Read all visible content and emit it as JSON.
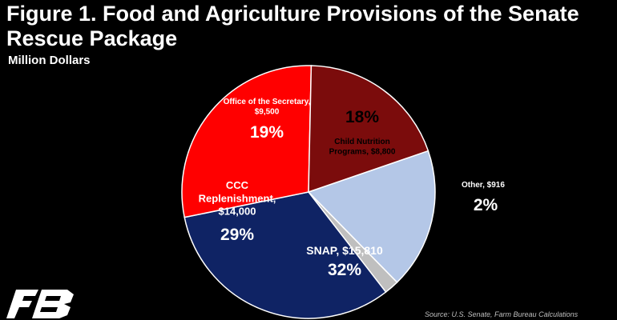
{
  "header": {
    "title": "Figure 1. Food and Agriculture Provisions of the Senate Rescue Package",
    "subtitle": "Million Dollars"
  },
  "footer": {
    "source": "Source: U.S. Senate, Farm Bureau Calculations",
    "logo_icon": "farm-bureau-logo-icon"
  },
  "chart_data": {
    "type": "pie",
    "title": "Figure 1. Food and Agriculture Provisions of the Senate Rescue Package",
    "subtitle": "Million Dollars",
    "unit": "Million Dollars",
    "slices": [
      {
        "label_lines": [
          "Child Nutrition",
          "Programs, $8,800"
        ],
        "name": "Child Nutrition Programs",
        "value": 8800,
        "percent_label": "18%",
        "color": "#b4c7e7"
      },
      {
        "label_lines": [
          "Other, $916"
        ],
        "name": "Other",
        "value": 916,
        "percent_label": "2%",
        "color": "#bfbfbf"
      },
      {
        "label_lines": [
          "SNAP, $15,810"
        ],
        "name": "SNAP",
        "value": 15810,
        "percent_label": "32%",
        "color": "#0f2364"
      },
      {
        "label_lines": [
          "CCC",
          "Replenishment,",
          "$14,000"
        ],
        "name": "CCC Replenishment",
        "value": 14000,
        "percent_label": "29%",
        "color": "#ff0000"
      },
      {
        "label_lines": [
          "Office of the Secretary,",
          "$9,500"
        ],
        "name": "Office of the Secretary",
        "value": 9500,
        "percent_label": "19%",
        "color": "#7b0c0c"
      }
    ],
    "start_angle_deg": 71,
    "direction": "clockwise",
    "legend": "none"
  }
}
